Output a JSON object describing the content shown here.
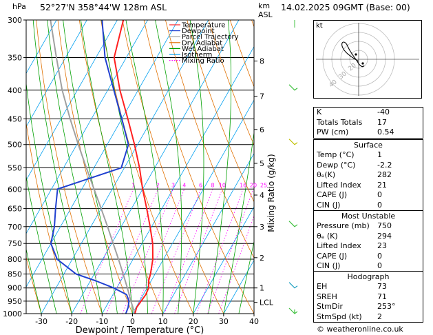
{
  "header": {
    "hpa_label": "hPa",
    "location": "52°27'N  358°44'W  128m  ASL",
    "km_label": "km",
    "asl_label": "ASL",
    "datetime": "14.02.2025  09GMT  (Base: 00)"
  },
  "hodograph": {
    "kt_label": "kt",
    "ring_labels": [
      "20",
      "30",
      "40"
    ]
  },
  "indices": {
    "k_label": "K",
    "k_value": "-40",
    "tt_label": "Totals Totals",
    "tt_value": "17",
    "pw_label": "PW (cm)",
    "pw_value": "0.54"
  },
  "surface": {
    "title": "Surface",
    "rows": [
      {
        "label": "Temp (°C)",
        "value": "1"
      },
      {
        "label": "Dewp (°C)",
        "value": "-2.2"
      },
      {
        "label": "θₑ(K)",
        "value": "282"
      },
      {
        "label": "Lifted Index",
        "value": "21"
      },
      {
        "label": "CAPE (J)",
        "value": "0"
      },
      {
        "label": "CIN (J)",
        "value": "0"
      }
    ]
  },
  "most_unstable": {
    "title": "Most Unstable",
    "rows": [
      {
        "label": "Pressure (mb)",
        "value": "750"
      },
      {
        "label": "θₑ (K)",
        "value": "294"
      },
      {
        "label": "Lifted Index",
        "value": "23"
      },
      {
        "label": "CAPE (J)",
        "value": "0"
      },
      {
        "label": "CIN (J)",
        "value": "0"
      }
    ]
  },
  "hodo_table": {
    "title": "Hodograph",
    "rows": [
      {
        "label": "EH",
        "value": "73"
      },
      {
        "label": "SREH",
        "value": "71"
      },
      {
        "label": "StmDir",
        "value": "253°"
      },
      {
        "label": "StmSpd (kt)",
        "value": "2"
      }
    ]
  },
  "footer": {
    "credit": "© weatheronline.co.uk"
  },
  "chart_data": {
    "type": "line",
    "title": "52°27'N  358°44'W  128m  ASL",
    "xlabel": "Dewpoint / Temperature (°C)",
    "ylabel": "hPa",
    "y2label": "Mixing Ratio (g/kg)",
    "xlim": [
      -35,
      40
    ],
    "ylim": [
      1000,
      300
    ],
    "y_scale": "log",
    "pressure_ticks": [
      300,
      350,
      400,
      450,
      500,
      550,
      600,
      650,
      700,
      750,
      800,
      850,
      900,
      950,
      1000
    ],
    "temp_ticks": [
      -30,
      -20,
      -10,
      0,
      10,
      20,
      30,
      40
    ],
    "km_ticks": [
      {
        "label": "8",
        "p": 355
      },
      {
        "label": "7",
        "p": 410
      },
      {
        "label": "6",
        "p": 470
      },
      {
        "label": "5",
        "p": 540
      },
      {
        "label": "4",
        "p": 615
      },
      {
        "label": "3",
        "p": 700
      },
      {
        "label": "2",
        "p": 795
      },
      {
        "label": "1",
        "p": 900
      },
      {
        "label": "LCL",
        "p": 955
      }
    ],
    "mixing_ratio_labels": [
      "1",
      "2",
      "3",
      "4",
      "6",
      "8",
      "10",
      "16",
      "20",
      "25"
    ],
    "legend": [
      "Temperature",
      "Dewpoint",
      "Parcel Trajectory",
      "Dry Adiabat",
      "Wet Adiabat",
      "Isotherm",
      "Mixing Ratio"
    ],
    "legend_colors": [
      "#ff2020",
      "#2040d0",
      "#a0a0a0",
      "#e07000",
      "#00a000",
      "#00a0f0",
      "#ff00ff"
    ],
    "series": [
      {
        "name": "Temperature",
        "color": "#ff2020",
        "p": [
          1000,
          975,
          950,
          925,
          900,
          875,
          850,
          800,
          750,
          700,
          650,
          600,
          550,
          500,
          450,
          400,
          350,
          300
        ],
        "t": [
          0.8,
          0.2,
          0.5,
          0.8,
          0.5,
          -0.8,
          -1.5,
          -3.5,
          -6.5,
          -10.5,
          -15,
          -20,
          -25,
          -31,
          -38,
          -46,
          -54,
          -58
        ]
      },
      {
        "name": "Dewpoint",
        "color": "#2040d0",
        "p": [
          1000,
          975,
          950,
          925,
          900,
          875,
          850,
          800,
          750,
          700,
          650,
          600,
          550,
          500,
          450,
          400,
          350,
          300
        ],
        "t": [
          -2.2,
          -2.6,
          -3.5,
          -5.5,
          -11,
          -18,
          -26,
          -35,
          -40,
          -42,
          -45,
          -48,
          -31,
          -33,
          -40,
          -48,
          -57,
          -65
        ]
      },
      {
        "name": "Parcel Trajectory",
        "color": "#a0a0a0",
        "p": [
          1000,
          955,
          900,
          850,
          800,
          750,
          700,
          650,
          600,
          550,
          500,
          450,
          400,
          350,
          300
        ],
        "t": [
          0.8,
          -2.5,
          -6.5,
          -10.5,
          -14.8,
          -19.5,
          -24.5,
          -30,
          -36,
          -42.5,
          -49.5,
          -57,
          -65,
          -73,
          -82
        ]
      }
    ],
    "wind_barbs_right": [
      {
        "p": 400,
        "color": "#40c040"
      },
      {
        "p": 500,
        "color": "#c0c000"
      },
      {
        "p": 700,
        "color": "#40c040"
      },
      {
        "p": 900,
        "color": "#20a0c0"
      },
      {
        "p": 1000,
        "color": "#40c040"
      }
    ]
  }
}
